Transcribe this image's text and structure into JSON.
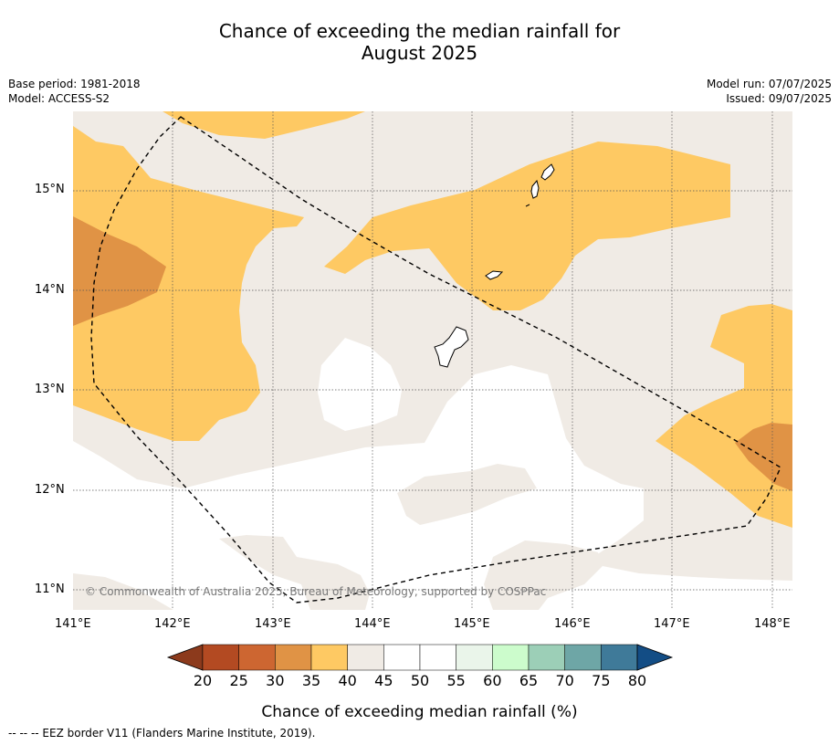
{
  "title_line1": "Chance of exceeding the median rainfall for",
  "title_line2": "August 2025",
  "meta": {
    "base_period": "Base period: 1981-2018",
    "model": "Model: ACCESS-S2",
    "model_run": "Model run: 07/07/2025",
    "issued": "Issued: 09/07/2025"
  },
  "axes": {
    "x_ticks": [
      "141°E",
      "142°E",
      "143°E",
      "144°E",
      "145°E",
      "146°E",
      "147°E",
      "148°E"
    ],
    "y_ticks": [
      "15°N",
      "14°N",
      "13°N",
      "12°N",
      "11°N"
    ]
  },
  "map": {
    "lon_range": [
      141,
      148.2
    ],
    "lat_range": [
      10.8,
      15.8
    ],
    "grid": true
  },
  "colorbar": {
    "ticks": [
      "20",
      "25",
      "30",
      "35",
      "40",
      "45",
      "50",
      "55",
      "60",
      "65",
      "70",
      "75",
      "80"
    ],
    "colors": [
      "#8c3a1c",
      "#b34a22",
      "#cd6631",
      "#e09345",
      "#fec963",
      "#f0ebe5",
      "#ffffff",
      "#ffffff",
      "#eaf5ea",
      "#ccfccc",
      "#9ccfb7",
      "#6ea6a6",
      "#3f7a99",
      "#134d85"
    ],
    "label": "Chance of exceeding median rainfall (%)"
  },
  "copyright": "© Commonwealth of Australia 2025, Bureau of Meteorology, supported by COSPPac",
  "footnote": "-- -- -- EEZ border V11 (Flanders Marine Institute, 2019)."
}
